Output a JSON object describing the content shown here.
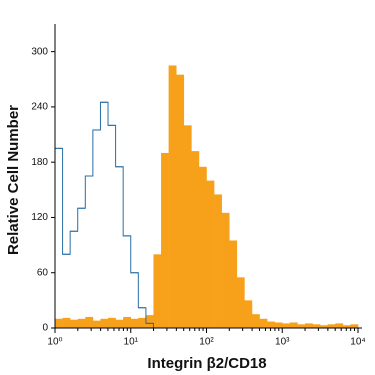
{
  "chart_data": {
    "type": "histogram",
    "xlabel": "Integrin β2/CD18",
    "ylabel": "Relative Cell Number",
    "xscale": "log",
    "xlim": [
      1,
      10000
    ],
    "ylim": [
      0,
      330
    ],
    "xticks": [
      {
        "value": 1,
        "label": "10⁰"
      },
      {
        "value": 10,
        "label": "10¹"
      },
      {
        "value": 100,
        "label": "10²"
      },
      {
        "value": 1000,
        "label": "10³"
      },
      {
        "value": 10000,
        "label": "10⁴"
      }
    ],
    "yticks": [
      0,
      60,
      120,
      180,
      240,
      300
    ],
    "bins": [
      1,
      1.259,
      1.585,
      1.995,
      2.512,
      3.162,
      3.981,
      5.012,
      6.31,
      7.943,
      10,
      12.59,
      15.85,
      19.95,
      25.12,
      31.62,
      39.81,
      50.12,
      63.1,
      79.43,
      100,
      125.9,
      158.5,
      199.5,
      251.2,
      316.2,
      398.1,
      501.2,
      631.0,
      794.3,
      1000,
      1259,
      1585,
      1995,
      2512,
      3162,
      3981,
      5012,
      6310,
      7943,
      10000
    ],
    "series": [
      {
        "color": "#2a6fa8",
        "style": "outline",
        "values": [
          195,
          80,
          105,
          130,
          165,
          215,
          245,
          220,
          175,
          100,
          60,
          22,
          5,
          0,
          0,
          0,
          0,
          0,
          0,
          0,
          0,
          0,
          0,
          0,
          0,
          0,
          0,
          0,
          0,
          0,
          0,
          0,
          0,
          0,
          0,
          0,
          0,
          0,
          0,
          0
        ]
      },
      {
        "color": "#f7a11a",
        "style": "filled",
        "values": [
          10,
          11,
          9,
          10,
          12,
          8,
          10,
          11,
          9,
          12,
          10,
          11,
          14,
          80,
          190,
          285,
          275,
          220,
          192,
          175,
          160,
          145,
          125,
          95,
          55,
          30,
          15,
          10,
          7,
          6,
          5,
          6,
          4,
          5,
          4,
          3,
          4,
          5,
          3,
          4
        ]
      }
    ]
  }
}
